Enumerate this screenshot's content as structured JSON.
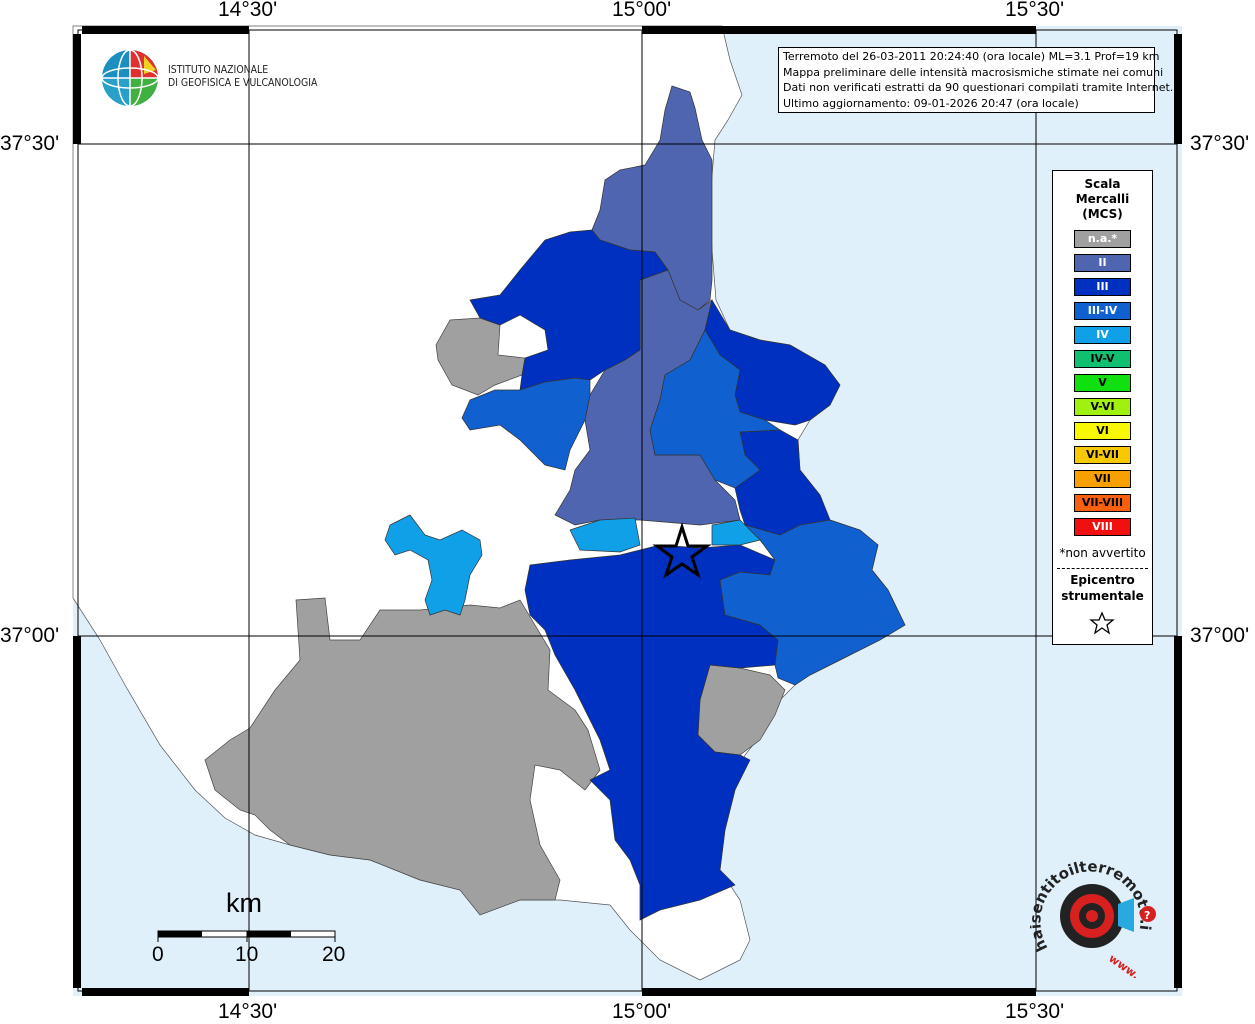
{
  "coords": {
    "lon_labels": [
      "14°30'",
      "15°00'",
      "15°30'"
    ],
    "lat_labels": [
      "37°30'",
      "37°00'"
    ]
  },
  "logo": {
    "line1": "ISTITUTO NAZIONALE",
    "line2": "DI GEOFISICA E VULCANOLOGIA"
  },
  "info": {
    "line1": "Terremoto del 26-03-2011 20:24:40 (ora locale) ML=3.1 Prof=19 km",
    "line2": "Mappa preliminare delle intensità macrosismiche stimate nei comuni",
    "line3": "Dati non verificati estratti da 90 questionari compilati tramite Internet.",
    "line4": "Ultimo aggiornamento: 09-01-2026 20:47 (ora locale)"
  },
  "legend": {
    "title1": "Scala",
    "title2": "Mercalli",
    "title3": "(MCS)",
    "items": [
      {
        "label": "n.a.*",
        "color": "#a0a0a0",
        "text_color": "#ffffff"
      },
      {
        "label": "II",
        "color": "#5065b0",
        "text_color": "#ffffff"
      },
      {
        "label": "III",
        "color": "#0030c0",
        "text_color": "#ffffff"
      },
      {
        "label": "III-IV",
        "color": "#1060d0",
        "text_color": "#ffffff"
      },
      {
        "label": "IV",
        "color": "#10a0e8",
        "text_color": "#ffffff"
      },
      {
        "label": "IV-V",
        "color": "#10c070",
        "text_color": "#000000"
      },
      {
        "label": "V",
        "color": "#10e010",
        "text_color": "#000000"
      },
      {
        "label": "V-VI",
        "color": "#a0f010",
        "text_color": "#000000"
      },
      {
        "label": "VI",
        "color": "#f8f800",
        "text_color": "#000000"
      },
      {
        "label": "VI-VII",
        "color": "#f8c800",
        "text_color": "#000000"
      },
      {
        "label": "VII",
        "color": "#f8a000",
        "text_color": "#000000"
      },
      {
        "label": "VII-VIII",
        "color": "#f86010",
        "text_color": "#000000"
      },
      {
        "label": "VIII",
        "color": "#f01010",
        "text_color": "#ffffff"
      }
    ],
    "note": "*non avvertito",
    "epicentro1": "Epicentro",
    "epicentro2": "strumentale"
  },
  "scalebar": {
    "unit": "km",
    "labels": [
      "0",
      "10",
      "20"
    ]
  },
  "brand": {
    "text": "haisentitoilterremoto.it",
    "www": "www."
  },
  "colors": {
    "sea": "#e0f0fb",
    "land": "#ffffff",
    "na": "#a0a0a0",
    "ii": "#5065b0",
    "iii": "#0030c0",
    "iii_iv": "#1060d0",
    "iv": "#10a0e8"
  }
}
